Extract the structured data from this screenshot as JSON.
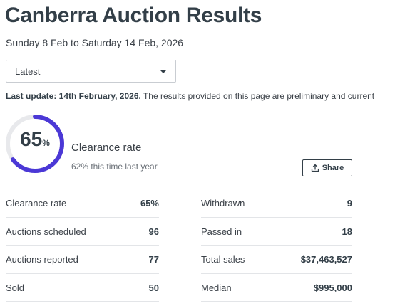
{
  "page": {
    "title": "Canberra Auction Results",
    "date_range": "Sunday 8 Feb to Saturday 14 Feb, 2026"
  },
  "filter": {
    "selected": "Latest"
  },
  "update_note": {
    "label": "Last update: 14th February, 2026.",
    "text": "The results provided on this page are preliminary and current"
  },
  "summary": {
    "clearance_value": "65",
    "clearance_symbol": "%",
    "clearance_fraction": 0.65,
    "clearance_label": "Clearance rate",
    "last_year_text": "62% this time last year",
    "gauge_color": "#4b38d6",
    "gauge_track_color": "#e8e9ec"
  },
  "share_button": {
    "label": "Share",
    "icon": "share-upload-icon"
  },
  "stats_left": [
    {
      "label": "Clearance rate",
      "value": "65%"
    },
    {
      "label": "Auctions scheduled",
      "value": "96"
    },
    {
      "label": "Auctions reported",
      "value": "77"
    },
    {
      "label": "Sold",
      "value": "50"
    }
  ],
  "stats_right": [
    {
      "label": "Withdrawn",
      "value": "9"
    },
    {
      "label": "Passed in",
      "value": "18"
    },
    {
      "label": "Total sales",
      "value": "$37,463,527"
    },
    {
      "label": "Median",
      "value": "$995,000"
    }
  ]
}
